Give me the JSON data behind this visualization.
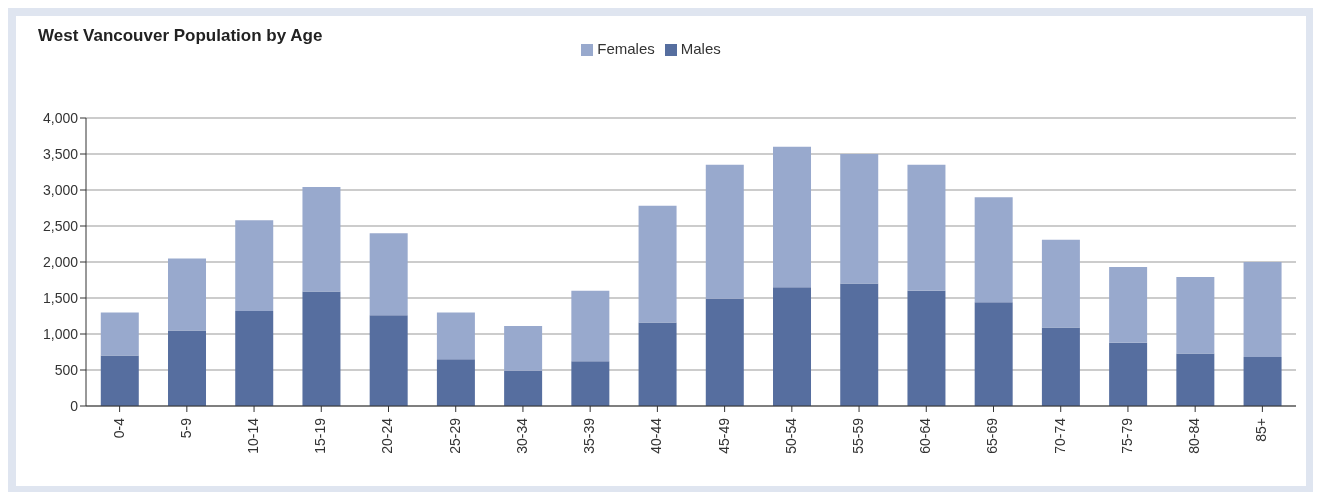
{
  "chart_data": {
    "type": "bar",
    "title": "West Vancouver Population by Age",
    "stacked": true,
    "categories": [
      "0-4",
      "5-9",
      "10-14",
      "15-19",
      "20-24",
      "25-29",
      "30-34",
      "35-39",
      "40-44",
      "45-49",
      "50-54",
      "55-59",
      "60-64",
      "65-69",
      "70-74",
      "75-79",
      "80-84",
      "85+"
    ],
    "series": [
      {
        "name": "Males",
        "color": "#566e9f",
        "values": [
          700,
          1050,
          1320,
          1590,
          1260,
          650,
          490,
          620,
          1160,
          1490,
          1650,
          1700,
          1600,
          1440,
          1090,
          880,
          730,
          680
        ]
      },
      {
        "name": "Females",
        "color": "#98a9cd",
        "values": [
          600,
          1000,
          1260,
          1450,
          1140,
          650,
          620,
          980,
          1620,
          1860,
          1950,
          1800,
          1750,
          1460,
          1220,
          1050,
          1060,
          1320
        ]
      }
    ],
    "ylim": [
      0,
      4000
    ],
    "yticks": [
      0,
      500,
      {
        "value": 1000,
        "label": "1,000"
      },
      {
        "value": 1500,
        "label": "1,500"
      },
      {
        "value": 2000,
        "label": "2,000"
      },
      {
        "value": 2500,
        "label": "2,500"
      },
      {
        "value": 3000,
        "label": "3,000"
      },
      {
        "value": 3500,
        "label": "3,500"
      },
      {
        "value": 4000,
        "label": "4,000"
      }
    ],
    "grid": "y",
    "legend": "top"
  }
}
